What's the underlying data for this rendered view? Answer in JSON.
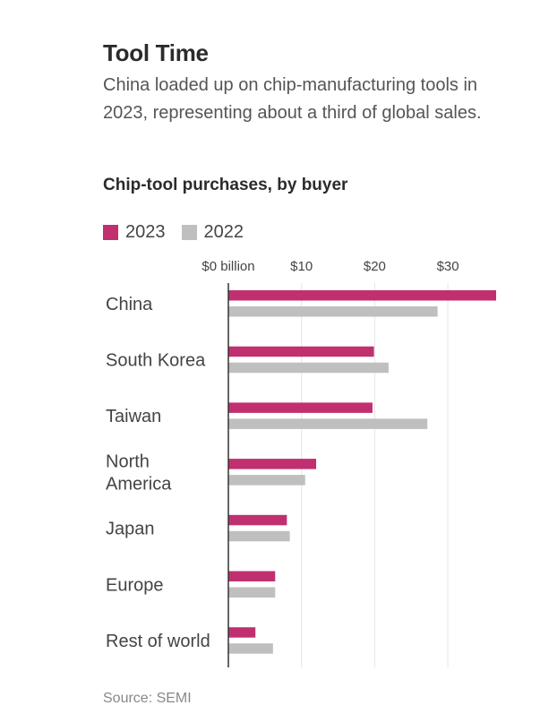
{
  "title": "Tool Time",
  "subtitle": "China loaded up on chip-manufacturing tools in 2023, representing about a third of global sales.",
  "source": "Source: SEMI",
  "colors": {
    "series_2023": "#c0306f",
    "series_2022": "#bfbfbf",
    "gridline": "#e4e4e4",
    "axis": "#333333"
  },
  "chart_data": {
    "type": "bar",
    "orientation": "horizontal",
    "title": "Chip-tool purchases, by buyer",
    "categories": [
      [
        "China"
      ],
      [
        "South Korea"
      ],
      [
        "Taiwan"
      ],
      [
        "North",
        "America"
      ],
      [
        "Japan"
      ],
      [
        "Europe"
      ],
      [
        "Rest of world"
      ]
    ],
    "series": [
      {
        "name": "2023",
        "values": [
          36.6,
          19.9,
          19.7,
          12.0,
          8.0,
          6.4,
          3.7
        ]
      },
      {
        "name": "2022",
        "values": [
          28.6,
          21.9,
          27.2,
          10.5,
          8.4,
          6.4,
          6.1
        ]
      }
    ],
    "x_ticks": [
      {
        "value": 0,
        "label": "$0 billion"
      },
      {
        "value": 10,
        "label": "$10"
      },
      {
        "value": 20,
        "label": "$20"
      },
      {
        "value": 30,
        "label": "$30"
      }
    ],
    "xlim": [
      0,
      36.6
    ],
    "grid": true,
    "legend": "top-left"
  }
}
